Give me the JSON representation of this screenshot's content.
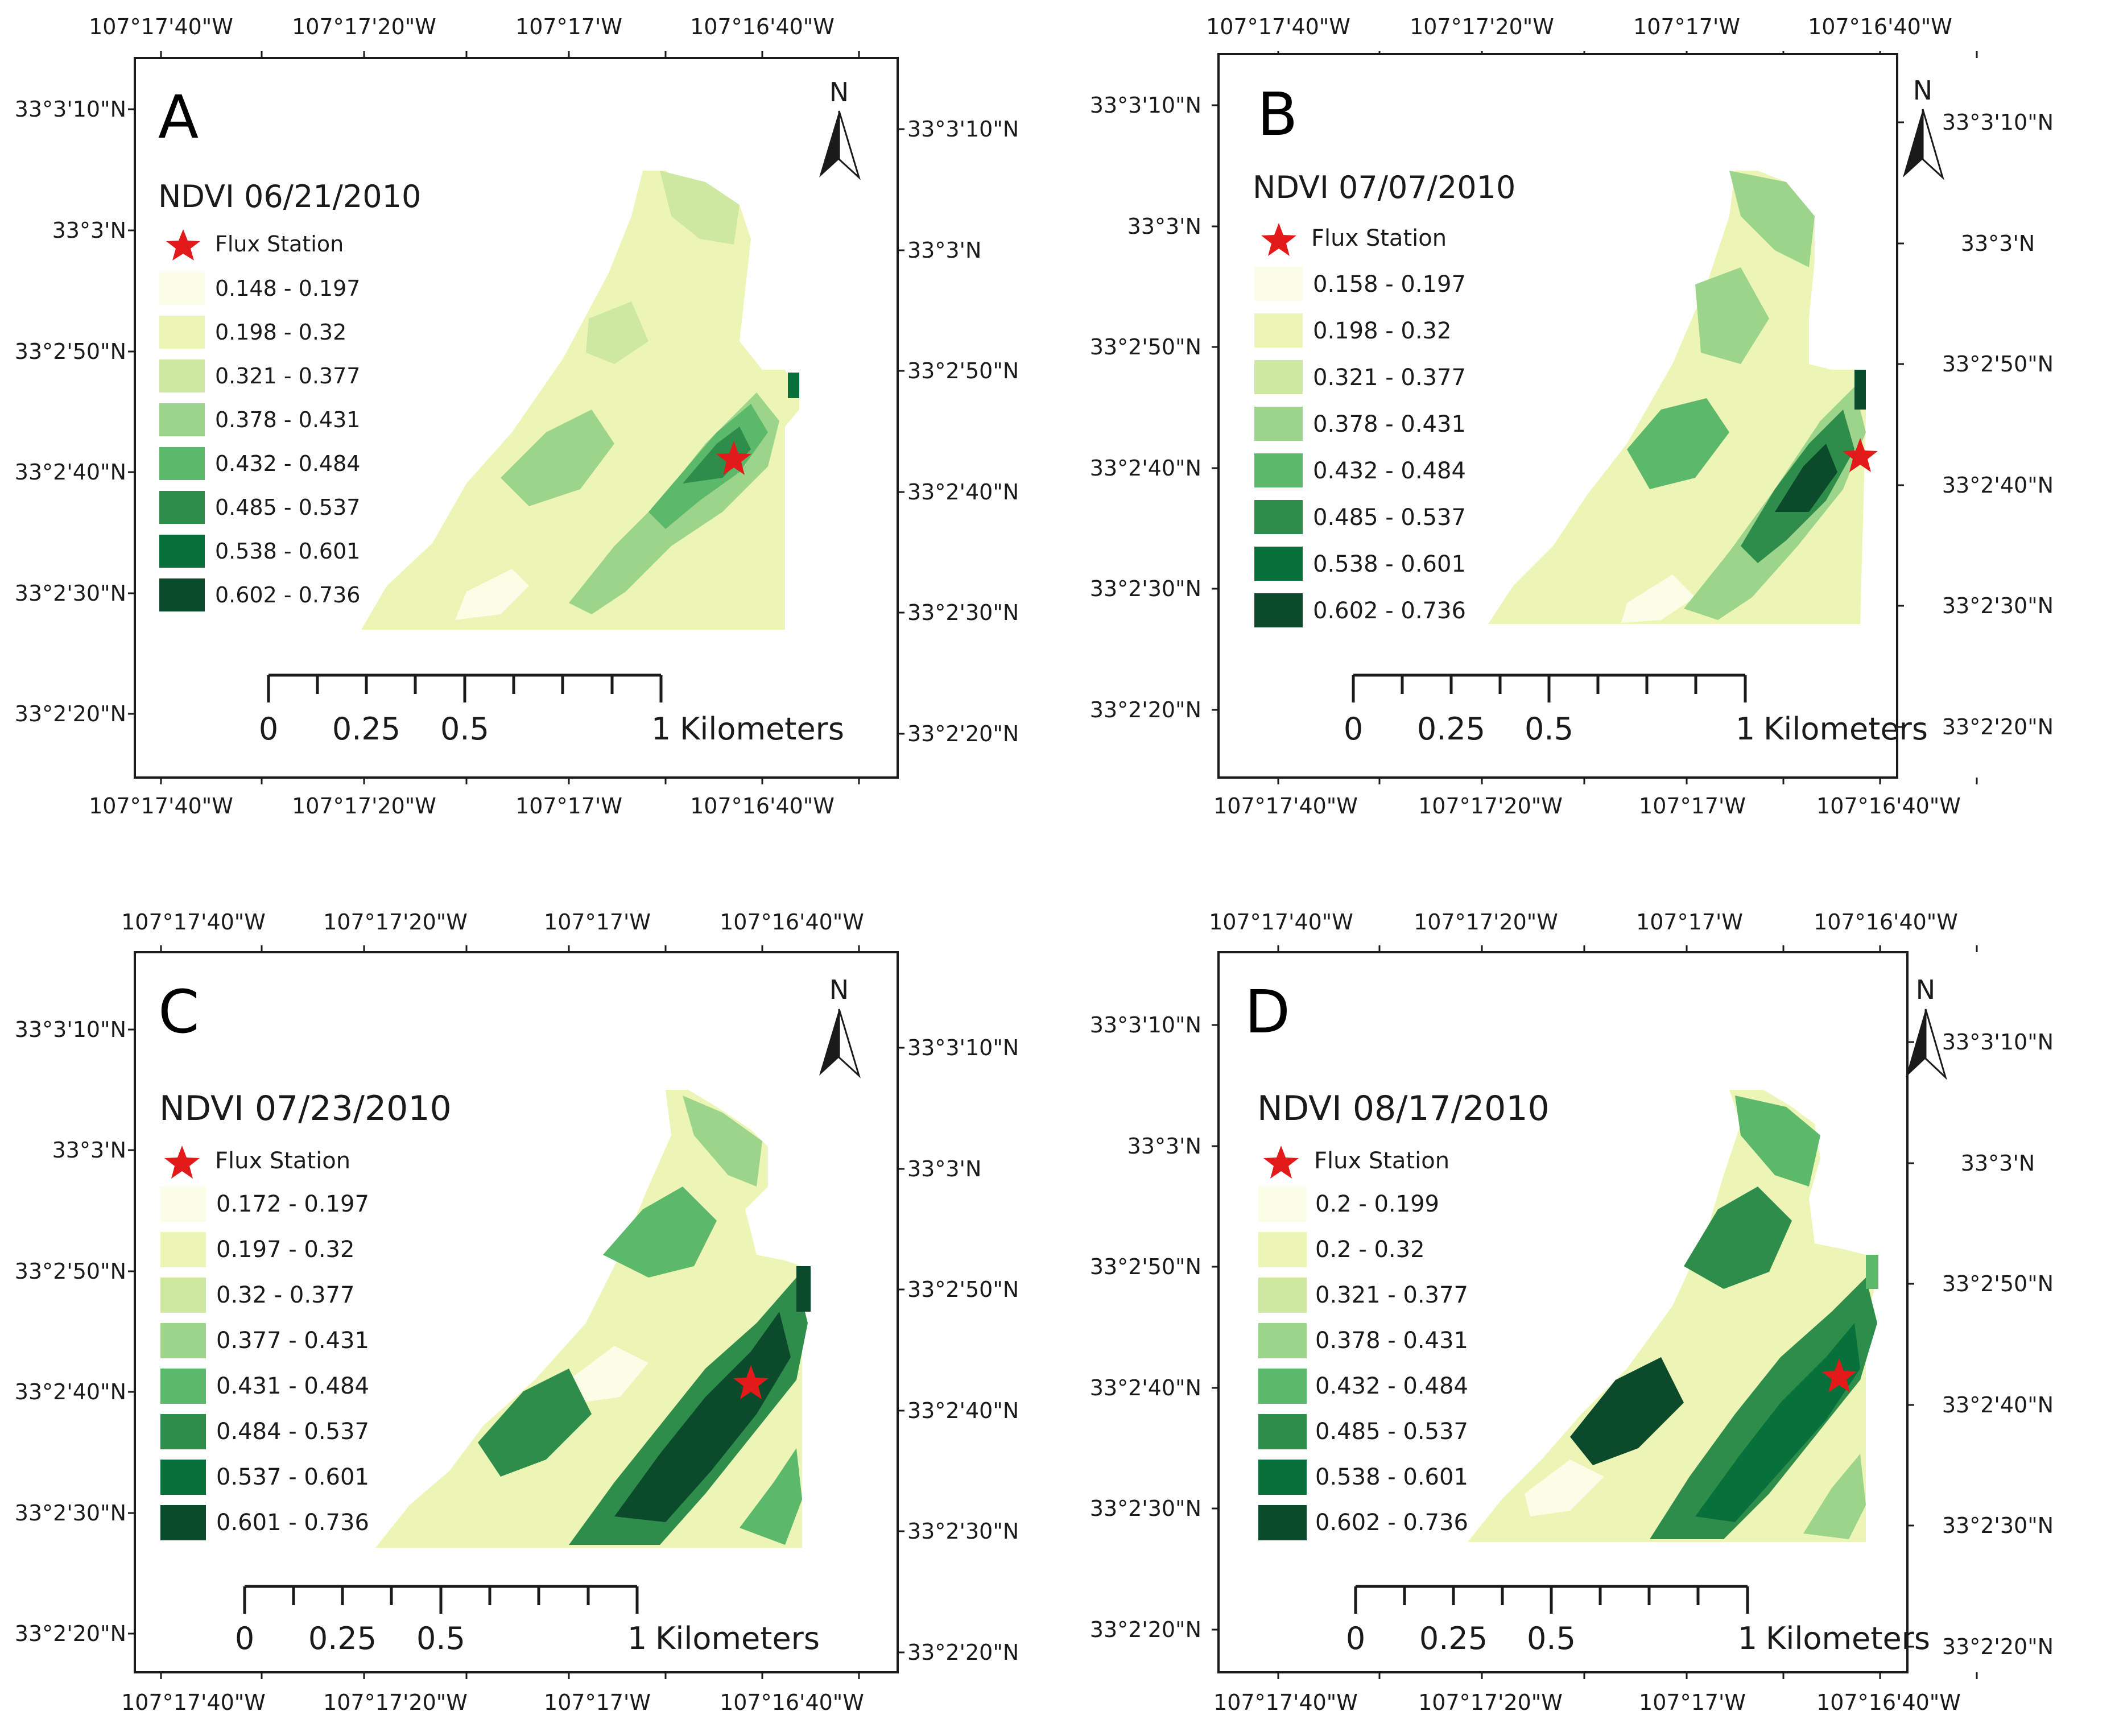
{
  "figure": {
    "lon_labels": [
      "107°17'40\"W",
      "107°17'20\"W",
      "107°17'W",
      "107°16'40\"W"
    ],
    "lat_labels": [
      "33°3'10\"N",
      "33°3'N",
      "33°2'50\"N",
      "33°2'40\"N",
      "33°2'30\"N",
      "33°2'20\"N"
    ],
    "north_label": "N",
    "station_label": "Flux Station",
    "scale": {
      "ticks": [
        "0",
        "0.25",
        "0.5",
        "1"
      ],
      "unit": "Kilometers"
    },
    "colors": {
      "frame": "#1a1a1a",
      "star": "#e21a1a",
      "ramp": [
        "#fbfde6",
        "#ecf5b5",
        "#cfe8a1",
        "#9bd48a",
        "#5cb86a",
        "#2e8d4b",
        "#07703b",
        "#0c4a2c"
      ]
    }
  },
  "maps": [
    {
      "letter": "A",
      "title": "NDVI 06/21/2010",
      "classes": [
        "0.148 - 0.197",
        "0.198 - 0.32",
        "0.321 - 0.377",
        "0.378 - 0.431",
        "0.432 - 0.484",
        "0.485 - 0.537",
        "0.538 - 0.601",
        "0.602 - 0.736"
      ]
    },
    {
      "letter": "B",
      "title": "NDVI 07/07/2010",
      "classes": [
        "0.158 - 0.197",
        "0.198 - 0.32",
        "0.321 - 0.377",
        "0.378 - 0.431",
        "0.432 - 0.484",
        "0.485 - 0.537",
        "0.538 - 0.601",
        "0.602 - 0.736"
      ]
    },
    {
      "letter": "C",
      "title": "NDVI 07/23/2010",
      "classes": [
        "0.172 - 0.197",
        "0.197 - 0.32",
        "0.32 - 0.377",
        "0.377 - 0.431",
        "0.431 - 0.484",
        "0.484 - 0.537",
        "0.537 - 0.601",
        "0.601 - 0.736"
      ]
    },
    {
      "letter": "D",
      "title": "NDVI 08/17/2010",
      "classes": [
        "0.2 - 0.199",
        "0.2 - 0.32",
        "0.321 - 0.377",
        "0.378 - 0.431",
        "0.432 - 0.484",
        "0.485 - 0.537",
        "0.538 - 0.601",
        "0.602 - 0.736"
      ]
    }
  ]
}
